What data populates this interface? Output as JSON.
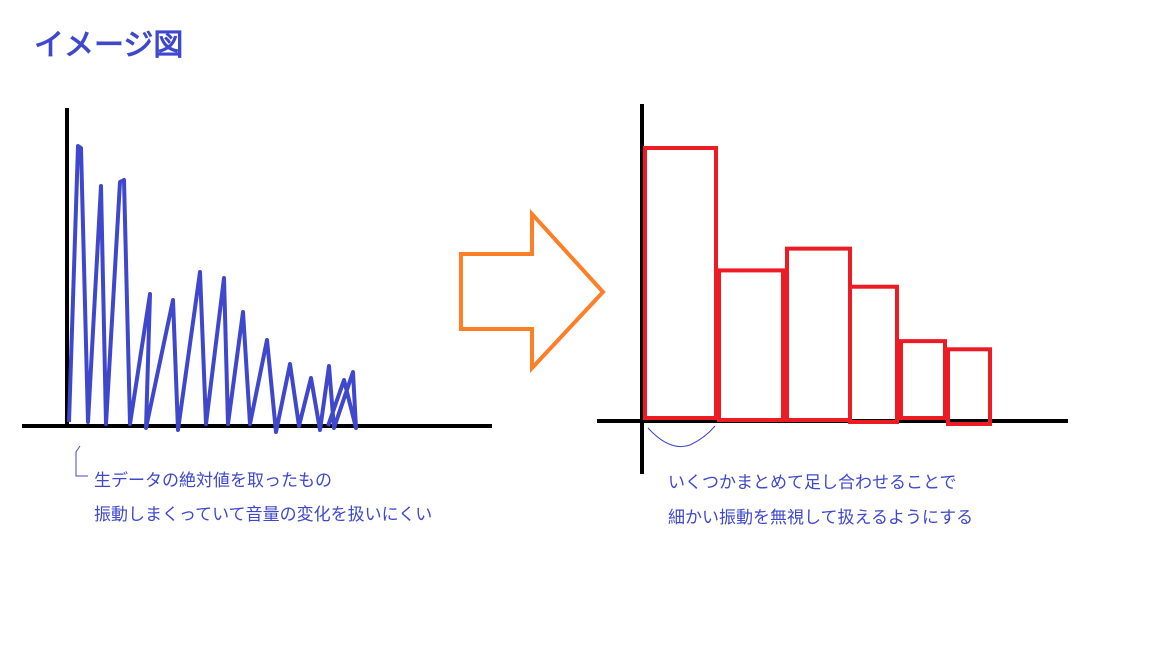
{
  "title": "イメージ図",
  "left_panel": {
    "note_line1": "生データの絶対値を取ったもの",
    "note_line2": "振動しまくっていて音量の変化を扱いにくい",
    "wave_color": "#3f48cc"
  },
  "right_panel": {
    "note_line1": "いくつかまとめて足し合わせることで",
    "note_line2": "細かい振動を無視して扱えるようにする",
    "bar_color": "#ed1c24",
    "bars": [
      1.0,
      0.55,
      0.63,
      0.49,
      0.29,
      0.26
    ]
  },
  "arrow_color": "#ff7f27",
  "axis_color": "#000000"
}
